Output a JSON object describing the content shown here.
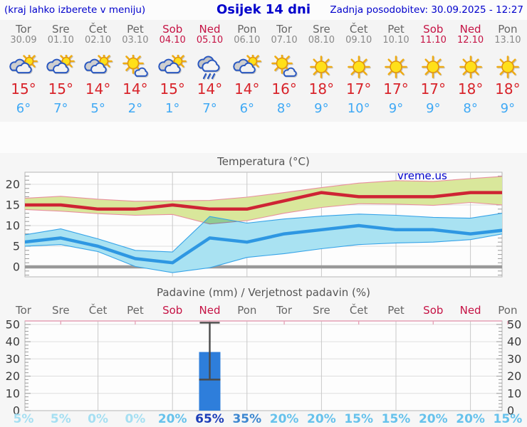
{
  "header": {
    "note": "(kraj lahko izberete v meniju)",
    "title": "Osijek 14 dni",
    "updated": "Zadnja posodobitev: 30.09.2025 - 12:27"
  },
  "watermark": "vreme.us",
  "colors": {
    "header_blue": "#0000cc",
    "weekend_red": "#c51244",
    "day_gray": "#666666",
    "high_red": "#d8232a",
    "low_blue": "#3fa9f5",
    "max_line": "#ce2434",
    "max_band": "#d9e79b",
    "max_band_edge": "#e8909e",
    "min_line": "#2e97e2",
    "min_band": "#a9e2f2",
    "min_band_edge": "#35a3e8",
    "bar_blue": "#2e7edb",
    "prob_0_5": "#a5dff2",
    "prob_15_20": "#66c2ec",
    "prob_35": "#3d87d0",
    "prob_65": "#1d3eb8"
  },
  "days": [
    {
      "name": "Tor",
      "date": "30.09",
      "weekend": false,
      "icon": "partly-cloudy",
      "high": "15°",
      "low": "6°",
      "prob": "5%"
    },
    {
      "name": "Sre",
      "date": "01.10",
      "weekend": false,
      "icon": "partly-cloudy",
      "high": "15°",
      "low": "7°",
      "prob": "5%"
    },
    {
      "name": "Čet",
      "date": "02.10",
      "weekend": false,
      "icon": "partly-cloudy",
      "high": "14°",
      "low": "5°",
      "prob": "0%"
    },
    {
      "name": "Pet",
      "date": "03.10",
      "weekend": false,
      "icon": "mostly-sunny",
      "high": "14°",
      "low": "2°",
      "prob": "0%"
    },
    {
      "name": "Sob",
      "date": "04.10",
      "weekend": true,
      "icon": "partly-cloudy",
      "high": "15°",
      "low": "1°",
      "prob": "20%"
    },
    {
      "name": "Ned",
      "date": "05.10",
      "weekend": true,
      "icon": "rain",
      "high": "14°",
      "low": "7°",
      "prob": "65%"
    },
    {
      "name": "Pon",
      "date": "06.10",
      "weekend": false,
      "icon": "partly-cloudy",
      "high": "14°",
      "low": "6°",
      "prob": "35%"
    },
    {
      "name": "Tor",
      "date": "07.10",
      "weekend": false,
      "icon": "mostly-sunny",
      "high": "16°",
      "low": "8°",
      "prob": "20%"
    },
    {
      "name": "Sre",
      "date": "08.10",
      "weekend": false,
      "icon": "sunny",
      "high": "18°",
      "low": "9°",
      "prob": "20%"
    },
    {
      "name": "Čet",
      "date": "09.10",
      "weekend": false,
      "icon": "sunny",
      "high": "17°",
      "low": "10°",
      "prob": "15%"
    },
    {
      "name": "Pet",
      "date": "10.10",
      "weekend": false,
      "icon": "sunny",
      "high": "17°",
      "low": "9°",
      "prob": "15%"
    },
    {
      "name": "Sob",
      "date": "11.10",
      "weekend": true,
      "icon": "sunny",
      "high": "17°",
      "low": "9°",
      "prob": "20%"
    },
    {
      "name": "Ned",
      "date": "12.10",
      "weekend": true,
      "icon": "sunny",
      "high": "18°",
      "low": "8°",
      "prob": "20%"
    },
    {
      "name": "Pon",
      "date": "13.10",
      "weekend": false,
      "icon": "sunny",
      "high": "18°",
      "low": "9°",
      "prob": "15%"
    }
  ],
  "chart_data": [
    {
      "type": "line",
      "title": "Temperatura (°C)",
      "categories": [
        "Tor",
        "Sre",
        "Čet",
        "Pet",
        "Sob",
        "Ned",
        "Pon",
        "Tor",
        "Sre",
        "Čet",
        "Pet",
        "Sob",
        "Ned",
        "Pon"
      ],
      "series": [
        {
          "name": "max temperatura",
          "values": [
            15,
            15,
            14,
            14,
            15,
            14,
            14,
            16,
            18,
            17,
            17,
            17,
            18,
            18
          ]
        },
        {
          "name": "min temperatura",
          "values": [
            6,
            7,
            5,
            2,
            1,
            7,
            6,
            8,
            9,
            10,
            9,
            9,
            8,
            9
          ]
        },
        {
          "name": "max razpon zgoraj",
          "values": [
            16.6,
            17.1,
            16.4,
            15.9,
            16.0,
            16.1,
            16.9,
            18.0,
            19.2,
            20.3,
            20.9,
            20.7,
            21.4,
            22.0
          ]
        },
        {
          "name": "max razpon spodaj",
          "values": [
            13.9,
            13.5,
            12.9,
            12.5,
            12.7,
            10.4,
            11.2,
            13.0,
            14.4,
            15.3,
            15.2,
            14.9,
            15.6,
            14.9
          ]
        },
        {
          "name": "min razpon zgoraj",
          "values": [
            7.7,
            9.2,
            6.8,
            4.0,
            3.6,
            12.2,
            10.6,
            11.6,
            12.3,
            12.8,
            12.5,
            12.0,
            11.8,
            13.2
          ]
        },
        {
          "name": "min razpon spodaj",
          "values": [
            5.0,
            5.4,
            3.7,
            0.1,
            -1.4,
            -0.2,
            2.3,
            3.2,
            4.4,
            5.4,
            5.8,
            6.0,
            6.6,
            8.2
          ]
        }
      ],
      "ylim": [
        -2.4,
        22.9
      ],
      "yticks": [
        0,
        5,
        10,
        15,
        20
      ],
      "grid": true,
      "annotation": "vreme.us"
    },
    {
      "type": "bar",
      "title": "Padavine (mm) / Verjetnost padavin (%)",
      "categories": [
        "Tor",
        "Sre",
        "Čet",
        "Pet",
        "Sob",
        "Ned",
        "Pon",
        "Tor",
        "Sre",
        "Čet",
        "Pet",
        "Sob",
        "Ned",
        "Pon"
      ],
      "values": [
        0,
        0,
        0,
        0,
        0,
        34,
        0,
        0,
        0,
        0,
        0,
        0,
        0,
        0
      ],
      "whisker": {
        "day_index": 5,
        "low": 18,
        "high": 51
      },
      "probabilities": [
        "5%",
        "5%",
        "0%",
        "0%",
        "20%",
        "65%",
        "35%",
        "20%",
        "20%",
        "15%",
        "15%",
        "20%",
        "20%",
        "15%"
      ],
      "ylim": [
        0,
        52
      ],
      "yticks": [
        0,
        10,
        20,
        30,
        40,
        50
      ],
      "grid": true
    }
  ]
}
